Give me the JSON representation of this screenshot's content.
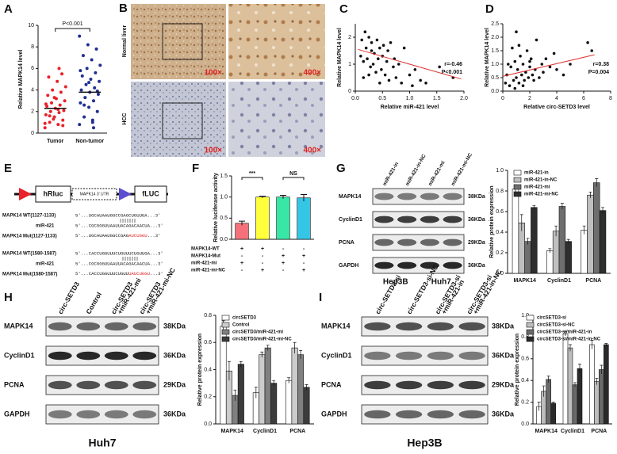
{
  "chart_data": [
    {
      "type": "strip",
      "panel": "A",
      "ylabel": "Relative MAPK14 level",
      "categories": [
        "Tumor",
        "Non-tumor"
      ],
      "groups": [
        {
          "color": "#e8212a",
          "values": [
            0.5,
            0.8,
            1.0,
            1.2,
            1.5,
            1.7,
            1.9,
            2.0,
            2.1,
            2.3,
            2.5,
            2.6,
            2.8,
            3.0,
            3.2,
            3.5,
            3.8,
            4.0,
            4.3,
            4.8,
            5.2,
            5.5,
            1.3,
            0.9,
            2.2,
            1.6,
            0.7,
            3.3,
            2.7,
            6.0
          ]
        },
        {
          "color": "#1f2f8f",
          "values": [
            0.8,
            1.2,
            1.5,
            2.0,
            2.4,
            2.8,
            3.0,
            3.3,
            3.6,
            3.8,
            4.0,
            4.2,
            4.5,
            4.8,
            5.0,
            5.3,
            5.6,
            6.0,
            6.3,
            6.8,
            7.2,
            7.8,
            8.2,
            9.0,
            1.0,
            2.6,
            3.9,
            4.7,
            5.8,
            0.5
          ]
        }
      ],
      "means": [
        2.3,
        3.8
      ],
      "annotations": [
        "P<0.001"
      ],
      "ylim": [
        0,
        10
      ],
      "yticks": [
        0,
        2,
        4,
        6,
        8,
        10
      ]
    },
    {
      "type": "scatter",
      "panel": "C",
      "xlabel": "Relative miR-421 level",
      "ylabel": "Relative MAPK14 level",
      "color": "#111111",
      "x": [
        0.1,
        0.12,
        0.15,
        0.18,
        0.2,
        0.22,
        0.25,
        0.28,
        0.3,
        0.3,
        0.33,
        0.35,
        0.38,
        0.4,
        0.42,
        0.45,
        0.48,
        0.5,
        0.52,
        0.55,
        0.58,
        0.6,
        0.62,
        0.65,
        0.7,
        0.72,
        0.75,
        0.8,
        0.85,
        0.9,
        1.0,
        1.05,
        1.1,
        1.2,
        1.3,
        1.55,
        1.8,
        0.15,
        0.25,
        0.45
      ],
      "values": [
        1.3,
        1.9,
        1.1,
        2.2,
        1.6,
        1.2,
        2.0,
        0.9,
        1.5,
        1.8,
        1.0,
        1.4,
        0.7,
        1.9,
        1.2,
        1.6,
        0.8,
        1.3,
        1.7,
        0.6,
        1.1,
        1.5,
        0.4,
        1.8,
        0.9,
        1.2,
        0.5,
        1.0,
        0.3,
        1.6,
        0.6,
        0.2,
        0.8,
        0.4,
        0.3,
        0.9,
        0.5,
        0.5,
        0.6,
        0.3
      ],
      "trend": {
        "color": "#e03030",
        "x": [
          0.05,
          1.95
        ],
        "y": [
          1.55,
          0.45
        ]
      },
      "annotations": [
        "r=-0.46",
        "P<0.001"
      ],
      "xlim": [
        0,
        2
      ],
      "xticks": [
        {
          "value": 0,
          "label": "0.0"
        },
        {
          "value": 0.5,
          "label": "0.5"
        },
        {
          "value": 1,
          "label": "1.0"
        },
        {
          "value": 1.5,
          "label": "1.5"
        },
        {
          "value": 2,
          "label": "2.0"
        }
      ],
      "ylim": [
        0,
        2.5
      ],
      "yticks": [
        0,
        1,
        2
      ]
    },
    {
      "type": "scatter",
      "panel": "D",
      "xlabel": "Relative circ-SETD3 level",
      "ylabel": "Relative MAPK14 level",
      "color": "#111111",
      "x": [
        0.2,
        0.3,
        0.5,
        0.6,
        0.8,
        0.9,
        1.0,
        1.1,
        1.2,
        1.3,
        1.4,
        1.5,
        1.6,
        1.7,
        1.8,
        1.9,
        2.0,
        2.1,
        2.2,
        2.4,
        2.5,
        2.7,
        2.9,
        3.0,
        3.2,
        3.5,
        3.8,
        4.0,
        4.5,
        5.0,
        6.3,
        6.6,
        0.4,
        0.7,
        1.0,
        1.5,
        2.0,
        2.3,
        0.9,
        1.2
      ],
      "values": [
        0.3,
        0.6,
        0.2,
        0.9,
        0.4,
        1.1,
        0.5,
        0.8,
        0.3,
        1.3,
        0.6,
        1.0,
        0.4,
        0.7,
        1.5,
        0.5,
        0.9,
        1.2,
        0.6,
        0.8,
        1.9,
        0.5,
        1.0,
        0.7,
        1.2,
        0.9,
        1.4,
        0.8,
        0.6,
        1.0,
        1.8,
        1.5,
        1.0,
        1.6,
        2.2,
        0.2,
        1.1,
        0.4,
        0.1,
        1.7
      ],
      "trend": {
        "color": "#e03030",
        "x": [
          0,
          6.8
        ],
        "y": [
          0.55,
          1.35
        ]
      },
      "annotations": [
        "r=0.38",
        "P=0.004"
      ],
      "xlim": [
        0,
        8
      ],
      "xticks": [
        0,
        2,
        4,
        6,
        8
      ],
      "ylim": [
        0,
        2.5
      ],
      "yticks": [
        {
          "value": 0,
          "label": "0.0"
        },
        {
          "value": 0.5,
          "label": "0.5"
        },
        {
          "value": 1,
          "label": "1.0"
        },
        {
          "value": 1.5,
          "label": "1.5"
        },
        {
          "value": 2,
          "label": "2.0"
        },
        {
          "value": 2.5,
          "label": "2.5"
        }
      ]
    },
    {
      "type": "bar",
      "panel": "F",
      "ylabel": "Relative luciferase activity",
      "categories": [
        null,
        null,
        null,
        null
      ],
      "values": [
        0.38,
        1.0,
        1.0,
        0.98
      ],
      "errors": [
        0.05,
        0.02,
        0.04,
        0.08
      ],
      "colors": [
        "#f4717a",
        "#ffff3b",
        "#38e6a6",
        "#35c6e6"
      ],
      "annotations": [
        "***",
        "NS"
      ],
      "ylim": [
        0,
        1.5
      ],
      "yticks": [
        {
          "value": 0,
          "label": "0.0"
        },
        {
          "value": 0.5,
          "label": "0.5"
        },
        {
          "value": 1,
          "label": "1.0"
        },
        {
          "value": 1.5,
          "label": "1.5"
        }
      ],
      "table": {
        "rows": [
          {
            "label": "MAPK14-WT",
            "cells": [
              "+",
              "+",
              "-",
              "-"
            ]
          },
          {
            "label": "MAPK14-Mut",
            "cells": [
              "-",
              "-",
              "+",
              "+"
            ]
          },
          {
            "label": "miR-421-mi",
            "cells": [
              "+",
              "-",
              "+",
              "-"
            ]
          },
          {
            "label": "miR-421-mi-NC",
            "cells": [
              "-",
              "+",
              "-",
              "+"
            ]
          }
        ]
      }
    },
    {
      "type": "grouped_bar",
      "panel": "G",
      "ylabel": "Relative protein expression",
      "categories": [
        "MAPK14",
        "CyclinD1",
        "PCNA"
      ],
      "series": [
        {
          "name": "miR-421-in",
          "color": "#ffffff",
          "values": [
            0.82,
            0.22,
            0.42
          ],
          "errors": [
            0.04,
            0.02,
            0.04
          ]
        },
        {
          "name": "miR-421-in-NC",
          "color": "#bfbfbf",
          "values": [
            0.49,
            0.41,
            0.76
          ],
          "errors": [
            0.08,
            0.05,
            0.03
          ]
        },
        {
          "name": "miR-421-mi",
          "color": "#6e6e6e",
          "values": [
            0.31,
            0.65,
            0.88
          ],
          "errors": [
            0.03,
            0.03,
            0.04
          ]
        },
        {
          "name": "miR-421-mi-NC",
          "color": "#2e2e2e",
          "values": [
            0.64,
            0.31,
            0.61
          ],
          "errors": [
            0.02,
            0.02,
            0.03
          ]
        }
      ],
      "ylim": [
        0,
        1
      ],
      "yticks": [
        {
          "value": 0,
          "label": "0.0"
        },
        {
          "value": 0.2,
          "label": "0.2"
        },
        {
          "value": 0.4,
          "label": "0.4"
        },
        {
          "value": 0.6,
          "label": "0.6"
        },
        {
          "value": 0.8,
          "label": "0.8"
        },
        {
          "value": 1,
          "label": "1.0"
        }
      ]
    },
    {
      "type": "grouped_bar",
      "panel": "H",
      "ylabel": "Relative protein expression",
      "categories": [
        "MAPK14",
        "CyclinD1",
        "PCNA"
      ],
      "series": [
        {
          "name": "circSETD3",
          "color": "#ffffff",
          "values": [
            0.72,
            0.23,
            0.32
          ],
          "errors": [
            0.04,
            0.04,
            0.02
          ]
        },
        {
          "name": "Control",
          "color": "#cccccc",
          "values": [
            0.39,
            0.51,
            0.56
          ],
          "errors": [
            0.07,
            0.02,
            0.04
          ]
        },
        {
          "name": "circSETD3/miR-421-mi",
          "color": "#808080",
          "values": [
            0.21,
            0.56,
            0.51
          ],
          "errors": [
            0.04,
            0.02,
            0.03
          ]
        },
        {
          "name": "circSETD3/miR-421-mi-NC",
          "color": "#3c3c3c",
          "values": [
            0.44,
            0.3,
            0.27
          ],
          "errors": [
            0.02,
            0.02,
            0.02
          ]
        }
      ],
      "ylim": [
        0,
        0.8
      ],
      "yticks": [
        {
          "value": 0,
          "label": "0.0"
        },
        {
          "value": 0.2,
          "label": "0.2"
        },
        {
          "value": 0.4,
          "label": "0.4"
        },
        {
          "value": 0.6,
          "label": "0.6"
        },
        {
          "value": 0.8,
          "label": "0.8"
        }
      ]
    },
    {
      "type": "grouped_bar",
      "panel": "I",
      "ylabel": "Relative protein expression",
      "categories": [
        "MAPK14",
        "CyclinD1",
        "PCNA"
      ],
      "series": [
        {
          "name": "circSETD3-si",
          "color": "#ffffff",
          "values": [
            0.16,
            0.83,
            0.73
          ],
          "errors": [
            0.04,
            0.02,
            0.04
          ]
        },
        {
          "name": "circSETD3-si-NC",
          "color": "#bdbdbd",
          "values": [
            0.3,
            0.7,
            0.39
          ],
          "errors": [
            0.05,
            0.03,
            0.03
          ]
        },
        {
          "name": "circSETD3-si/miR-421-in",
          "color": "#6a6a6a",
          "values": [
            0.41,
            0.36,
            0.5
          ],
          "errors": [
            0.03,
            0.02,
            0.04
          ]
        },
        {
          "name": "circSETD3-si/miR-421-in-NC",
          "color": "#2a2a2a",
          "values": [
            0.19,
            0.51,
            0.73
          ],
          "errors": [
            0.01,
            0.04,
            0.01
          ]
        }
      ],
      "ylim": [
        0,
        1
      ],
      "yticks": [
        {
          "value": 0,
          "label": "0.0"
        },
        {
          "value": 0.2,
          "label": "0.2"
        },
        {
          "value": 0.4,
          "label": "0.4"
        },
        {
          "value": 0.6,
          "label": "0.6"
        },
        {
          "value": 0.8,
          "label": "0.8"
        },
        {
          "value": 1,
          "label": "1.0"
        }
      ]
    }
  ],
  "images": {
    "panel": "B",
    "rows": [
      "Normal liver",
      "HCC"
    ],
    "magnifications": [
      "100×",
      "400×"
    ]
  },
  "diagram": {
    "panel": "E",
    "elements": [
      "hRluc",
      "MAPK14 3' UTR",
      "fLUC"
    ],
    "sites": [
      {
        "wt_label": "MAPK14 WT(1127-1133)",
        "wt_seq": "5'...UGCAUAAUGGCCGAGCUGUUGA...3'",
        "mir_label": "miR-421",
        "mir_seq": "5'...CGCGGGUUAAUUACAGACAACUA...3'",
        "mut_label": "MAPK14 Mut(1127-1133)",
        "mut_seq": [
          "5'...UGCAUAAUGGCCGAG",
          "AUCUGGU",
          "...3'"
        ]
      },
      {
        "wt_label": "MAPK14 WT(1580-1587)",
        "wt_seq": "5'...CACCUGGUUUCUGUUUCUGUUGA...3'",
        "mir_label": "miR-421",
        "mir_seq": "5'...CGCGGGUUAAUUACAGACAACUA...3'",
        "mut_label": "MAPK14 Mut(1580-1587)",
        "mut_seq": [
          "5'...CACCUGGUUUCUGUU",
          "UAUCUGGU",
          "...3'"
        ]
      }
    ]
  },
  "blots": [
    {
      "columns": [
        [
          "miR-421-in"
        ],
        [
          "miR-421-in-NC"
        ],
        [
          "miR-421-mi"
        ],
        [
          "miR-421-mi-NC"
        ]
      ],
      "rows": [
        "MAPK14",
        "CyclinD1",
        "PCNA",
        "GAPDH"
      ],
      "sizes": [
        "38KDa",
        "36KDa",
        "29KDa",
        "36KDa"
      ],
      "cell_lines": [
        "Hep3B",
        "Huh7"
      ]
    },
    {
      "columns": [
        [
          "circ-SETD3"
        ],
        [
          "Control"
        ],
        [
          "circ-SETD3",
          "+miR-421-mi"
        ],
        [
          "circ-SETD3",
          "+miR-421-mi-NC"
        ]
      ],
      "rows": [
        "MAPK14",
        "CyclinD1",
        "PCNA",
        "GAPDH"
      ],
      "sizes": [
        "38KDa",
        "36KDa",
        "29KDa",
        "36KDa"
      ],
      "cell_lines": [
        "Huh7"
      ]
    },
    {
      "columns": [
        [
          "circ-SETD3-si"
        ],
        [
          "circ-SETD3-si-NC"
        ],
        [
          "circ-SETD3-si",
          "+miR-421-in"
        ],
        [
          "circ-SETD3-si",
          "+miR-421-in-NC"
        ]
      ],
      "rows": [
        "MAPK14",
        "CyclinD1",
        "PCNA",
        "GAPDH"
      ],
      "sizes": [
        "38KDa",
        "36KDa",
        "29KDa",
        "36KDa"
      ],
      "cell_lines": [
        "Hep3B"
      ]
    }
  ]
}
